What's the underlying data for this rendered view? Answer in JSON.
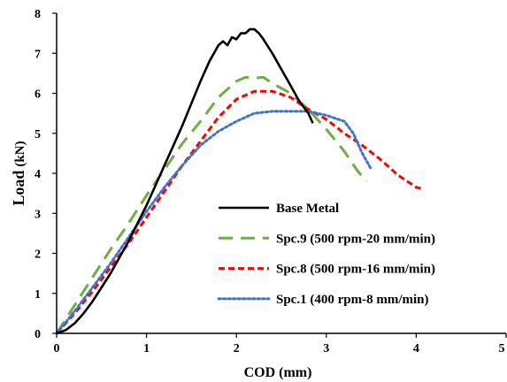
{
  "chart_data": {
    "type": "line",
    "title": "",
    "xlabel": "COD (mm)",
    "ylabel_main": "Load",
    "ylabel_unit": "(kN)",
    "xlim": [
      0,
      5
    ],
    "ylim": [
      0,
      8
    ],
    "x_ticks": [
      "0",
      "1",
      "2",
      "3",
      "4",
      "5"
    ],
    "y_ticks": [
      "0",
      "1",
      "2",
      "3",
      "4",
      "5",
      "6",
      "7",
      "8"
    ],
    "grid": false,
    "legend_position": "inside-lower-right",
    "series": [
      {
        "name": "Base Metal",
        "color": "#000000",
        "style": "solid",
        "x": [
          0,
          0.1,
          0.2,
          0.3,
          0.4,
          0.5,
          0.6,
          0.7,
          0.8,
          0.9,
          1.0,
          1.1,
          1.2,
          1.3,
          1.4,
          1.5,
          1.6,
          1.7,
          1.8,
          1.85,
          1.9,
          1.95,
          2.0,
          2.05,
          2.1,
          2.15,
          2.2,
          2.25,
          2.3,
          2.4,
          2.5,
          2.6,
          2.7,
          2.8,
          2.85
        ],
        "y": [
          0,
          0.08,
          0.25,
          0.5,
          0.8,
          1.15,
          1.5,
          1.9,
          2.3,
          2.75,
          3.2,
          3.7,
          4.2,
          4.7,
          5.2,
          5.75,
          6.3,
          6.8,
          7.2,
          7.3,
          7.2,
          7.4,
          7.35,
          7.5,
          7.5,
          7.6,
          7.6,
          7.5,
          7.35,
          7.0,
          6.6,
          6.2,
          5.8,
          5.5,
          5.25
        ]
      },
      {
        "name": "Spc.9 (500 rpm-20 mm/min)",
        "color": "#70AD47",
        "style": "long-dash",
        "x": [
          0,
          0.2,
          0.4,
          0.6,
          0.8,
          1.0,
          1.2,
          1.4,
          1.6,
          1.8,
          2.0,
          2.1,
          2.2,
          2.3,
          2.4,
          2.6,
          2.8,
          3.0,
          3.2,
          3.35,
          3.45
        ],
        "y": [
          0,
          0.7,
          1.4,
          2.1,
          2.75,
          3.45,
          4.1,
          4.75,
          5.3,
          5.9,
          6.3,
          6.4,
          6.38,
          6.4,
          6.25,
          6.0,
          5.6,
          5.1,
          4.55,
          4.05,
          3.8
        ]
      },
      {
        "name": "Spc.8 (500 rpm-16 mm/min)",
        "color": "#FF0000",
        "style": "short-dash",
        "x": [
          0,
          0.2,
          0.4,
          0.6,
          0.8,
          1.0,
          1.2,
          1.4,
          1.6,
          1.8,
          2.0,
          2.2,
          2.4,
          2.6,
          2.8,
          3.0,
          3.2,
          3.4,
          3.6,
          3.8,
          4.0,
          4.05
        ],
        "y": [
          0,
          0.5,
          1.05,
          1.65,
          2.25,
          2.9,
          3.55,
          4.2,
          4.8,
          5.4,
          5.85,
          6.05,
          6.05,
          5.9,
          5.6,
          5.35,
          5.0,
          4.7,
          4.35,
          3.95,
          3.65,
          3.62
        ]
      },
      {
        "name": "Spc.1 (400 rpm-8 mm/min)",
        "color": "#4472C4",
        "style": "dotted",
        "x": [
          0,
          0.2,
          0.4,
          0.6,
          0.8,
          1.0,
          1.2,
          1.4,
          1.6,
          1.8,
          2.0,
          2.2,
          2.4,
          2.6,
          2.8,
          3.0,
          3.2,
          3.3,
          3.4,
          3.5
        ],
        "y": [
          0,
          0.55,
          1.15,
          1.75,
          2.4,
          3.05,
          3.65,
          4.2,
          4.7,
          5.05,
          5.3,
          5.5,
          5.55,
          5.55,
          5.55,
          5.45,
          5.3,
          5.0,
          4.5,
          4.1
        ]
      }
    ]
  }
}
